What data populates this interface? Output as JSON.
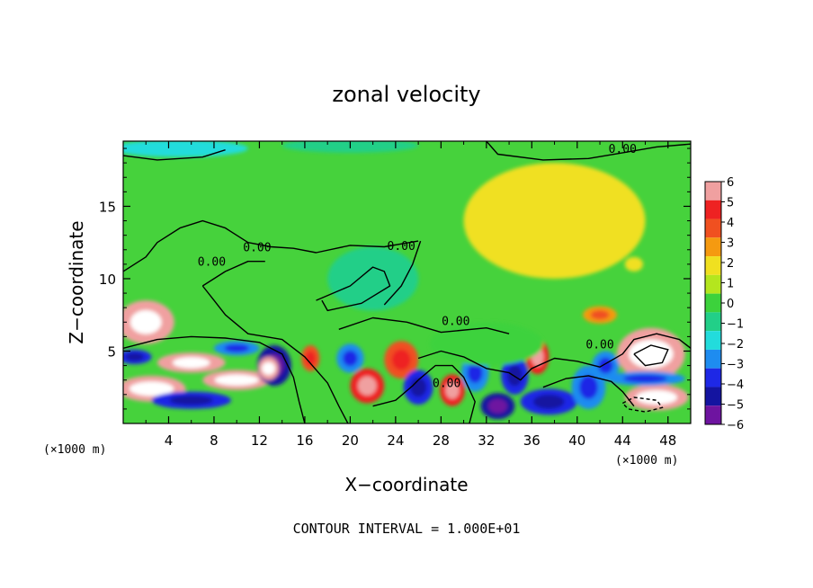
{
  "chart_data": {
    "type": "heatmap",
    "title": "zonal velocity",
    "xlabel": "X−coordinate",
    "ylabel": "Z−coordinate",
    "x_unit_left": "(×1000 m)",
    "x_unit_right": "(×1000 m)",
    "xlim": [
      0,
      50
    ],
    "ylim": [
      0,
      19.5
    ],
    "x_ticks": [
      4,
      8,
      12,
      16,
      20,
      24,
      28,
      32,
      36,
      40,
      44,
      48
    ],
    "x_tick_labels": [
      "4",
      "8",
      "12",
      "16",
      "20",
      "24",
      "28",
      "32",
      "36",
      "40",
      "44",
      "48"
    ],
    "y_ticks": [
      5,
      10,
      15
    ],
    "y_tick_labels": [
      "5",
      "10",
      "15"
    ],
    "colorbar": {
      "min": -6,
      "max": 6,
      "levels": [
        6,
        5,
        4,
        3,
        2,
        1,
        0,
        -1,
        -2,
        -3,
        -4,
        -5,
        -6
      ],
      "labels": [
        "6",
        "5",
        "4",
        "3",
        "2",
        "1",
        "0",
        "−1",
        "−2",
        "−3",
        "−4",
        "−5",
        "−6"
      ],
      "colors": [
        "#f0a0a0",
        "#ee2222",
        "#f05020",
        "#f59a10",
        "#f0e020",
        "#b4e61e",
        "#3cd23c",
        "#22cf88",
        "#22dcdc",
        "#1e8cf0",
        "#1e28e6",
        "#1414a0",
        "#6e14a0"
      ]
    },
    "field_features": [
      {
        "x": 2,
        "z": 7,
        "value": 5.5,
        "rx": 2.5,
        "rz": 1.5
      },
      {
        "x": 6,
        "z": 4.2,
        "value": 6,
        "rx": 3,
        "rz": 0.7
      },
      {
        "x": 10,
        "z": 3,
        "value": 6.5,
        "rx": 3,
        "rz": 0.7
      },
      {
        "x": 2.5,
        "z": 2.4,
        "value": 7,
        "rx": 3,
        "rz": 0.9
      },
      {
        "x": 6,
        "z": 1.6,
        "value": -4,
        "rx": 3.5,
        "rz": 0.6
      },
      {
        "x": 1,
        "z": 4.6,
        "value": -4,
        "rx": 1.5,
        "rz": 0.5
      },
      {
        "x": 10,
        "z": 5.2,
        "value": -3,
        "rx": 2,
        "rz": 0.5
      },
      {
        "x": 13.3,
        "z": 4,
        "value": -5,
        "rx": 1.5,
        "rz": 1.4
      },
      {
        "x": 12.8,
        "z": 3.8,
        "value": 7,
        "rx": 0.9,
        "rz": 0.8
      },
      {
        "x": 16.5,
        "z": 4.5,
        "value": 3.5,
        "rx": 0.8,
        "rz": 0.9
      },
      {
        "x": 20,
        "z": 4.5,
        "value": -3,
        "rx": 1.2,
        "rz": 1.0
      },
      {
        "x": 21.5,
        "z": 2.6,
        "value": 4.5,
        "rx": 1.5,
        "rz": 1.2
      },
      {
        "x": 24.5,
        "z": 4.4,
        "value": 3.5,
        "rx": 1.5,
        "rz": 1.3
      },
      {
        "x": 26,
        "z": 2.5,
        "value": -4,
        "rx": 1.3,
        "rz": 1.2
      },
      {
        "x": 29,
        "z": 2.3,
        "value": 4.5,
        "rx": 1.1,
        "rz": 1.1
      },
      {
        "x": 31,
        "z": 3.5,
        "value": -3,
        "rx": 1.2,
        "rz": 1.3
      },
      {
        "x": 33,
        "z": 1.2,
        "value": -5,
        "rx": 1.5,
        "rz": 0.9
      },
      {
        "x": 34.5,
        "z": 3.3,
        "value": -4,
        "rx": 1.2,
        "rz": 1.3
      },
      {
        "x": 36.5,
        "z": 4.6,
        "value": 4.5,
        "rx": 1.0,
        "rz": 1.2
      },
      {
        "x": 37.5,
        "z": 1.5,
        "value": -4,
        "rx": 2.5,
        "rz": 0.9
      },
      {
        "x": 41,
        "z": 2.5,
        "value": -3.5,
        "rx": 1.5,
        "rz": 1.5
      },
      {
        "x": 42.5,
        "z": 4,
        "value": -3,
        "rx": 1.2,
        "rz": 1.0
      },
      {
        "x": 46.5,
        "z": 4.8,
        "value": 7,
        "rx": 3,
        "rz": 1.8
      },
      {
        "x": 47,
        "z": 1.8,
        "value": 7,
        "rx": 2.8,
        "rz": 0.9
      },
      {
        "x": 46,
        "z": 3.1,
        "value": -3.5,
        "rx": 3.5,
        "rz": 0.5
      },
      {
        "x": 22,
        "z": 10,
        "value": -1.8,
        "rx": 4,
        "rz": 2.2
      },
      {
        "x": 38,
        "z": 14,
        "value": 1.2,
        "rx": 8,
        "rz": 4
      },
      {
        "x": 45,
        "z": 11,
        "value": 2,
        "rx": 0.8,
        "rz": 0.5
      },
      {
        "x": 42,
        "z": 7.5,
        "value": 3,
        "rx": 1.5,
        "rz": 0.6
      },
      {
        "x": 5,
        "z": 19,
        "value": -2.2,
        "rx": 6,
        "rz": 0.6
      },
      {
        "x": 20,
        "z": 19.2,
        "value": -1.8,
        "rx": 6,
        "rz": 0.5
      },
      {
        "x": 32,
        "z": 5.5,
        "value": -0.8,
        "rx": 5,
        "rz": 1.5
      }
    ],
    "contour_labels": [
      {
        "x": 44,
        "z": 18.7,
        "text": "0.00"
      },
      {
        "x": 7.8,
        "z": 10.9,
        "text": "0.00"
      },
      {
        "x": 11.8,
        "z": 11.9,
        "text": "0.00"
      },
      {
        "x": 24.5,
        "z": 12.0,
        "text": "0.00"
      },
      {
        "x": 29.3,
        "z": 6.8,
        "text": "0.00"
      },
      {
        "x": 42,
        "z": 5.2,
        "text": "0.00"
      },
      {
        "x": 28.5,
        "z": 2.5,
        "text": "0.00"
      }
    ]
  },
  "footer": {
    "contour_interval": "CONTOUR INTERVAL = 1.000E+01"
  }
}
